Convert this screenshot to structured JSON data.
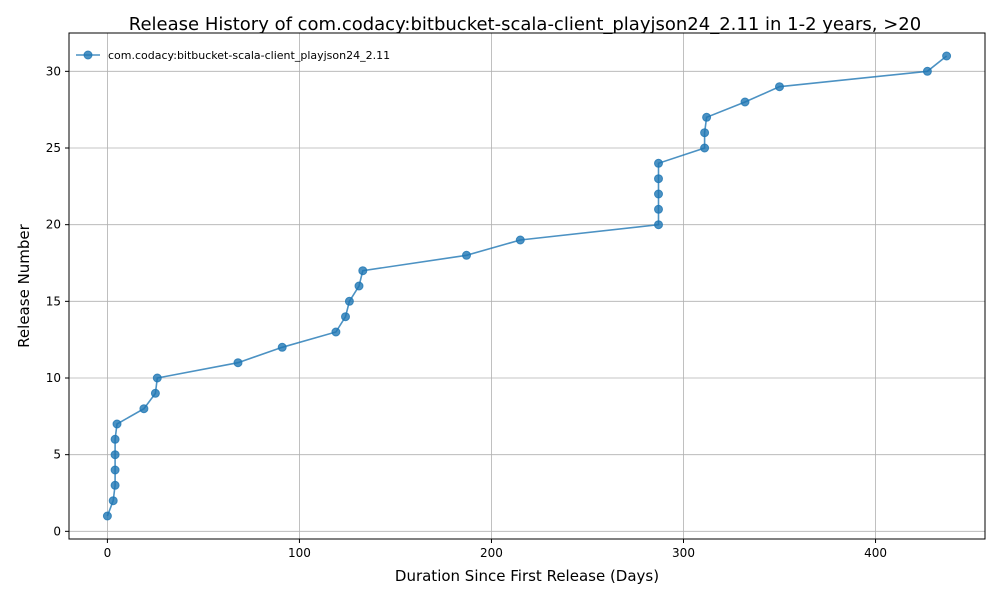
{
  "chart_data": {
    "type": "line",
    "title": "Release History of com.codacy:bitbucket-scala-client_playjson24_2.11 in 1-2 years, >20",
    "xlabel": "Duration Since First Release (Days)",
    "ylabel": "Release Number",
    "xlim": [
      -20,
      457
    ],
    "ylim": [
      -0.5,
      32.5
    ],
    "xticks": [
      0,
      100,
      200,
      300,
      400
    ],
    "yticks": [
      0,
      5,
      10,
      15,
      20,
      25,
      30
    ],
    "grid": true,
    "legend_position": "top-left",
    "series": [
      {
        "name": "com.codacy:bitbucket-scala-client_playjson24_2.11",
        "color": "#1f77b4",
        "x": [
          0,
          3,
          4,
          4,
          4,
          4,
          5,
          19,
          25,
          26,
          68,
          91,
          119,
          124,
          126,
          131,
          133,
          187,
          215,
          287,
          287,
          287,
          287,
          287,
          311,
          311,
          312,
          332,
          350,
          427,
          437
        ],
        "y": [
          1,
          2,
          3,
          4,
          5,
          6,
          7,
          8,
          9,
          10,
          11,
          12,
          13,
          14,
          15,
          16,
          17,
          18,
          19,
          20,
          21,
          22,
          23,
          24,
          25,
          26,
          27,
          28,
          29,
          30,
          31
        ]
      }
    ]
  }
}
